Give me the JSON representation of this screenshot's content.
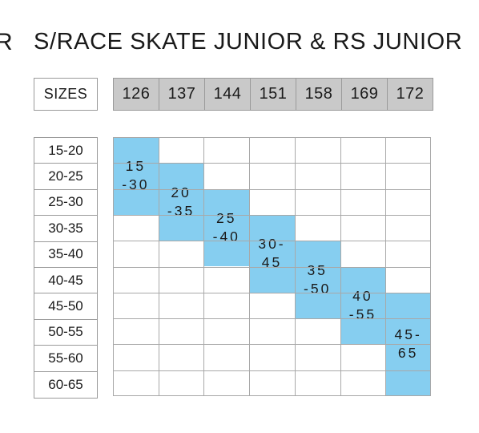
{
  "title": {
    "prefix": "R",
    "text": "S/RACE SKATE JUNIOR & RS JUNIOR"
  },
  "header": {
    "sizes_label": "SIZES",
    "sizes": [
      "126",
      "137",
      "144",
      "151",
      "158",
      "169",
      "172"
    ]
  },
  "ranges": [
    "15-20",
    "20-25",
    "25-30",
    "30-35",
    "35-40",
    "40-45",
    "45-50",
    "50-55",
    "55-60",
    "60-65"
  ],
  "recommendations": [
    {
      "size": "126",
      "label": "15\n-30",
      "rows": [
        0,
        2
      ]
    },
    {
      "size": "137",
      "label": "20\n-35",
      "rows": [
        1,
        3
      ]
    },
    {
      "size": "144",
      "label": "25\n-40",
      "rows": [
        2,
        4
      ]
    },
    {
      "size": "151",
      "label": "30-\n45",
      "rows": [
        3,
        5
      ]
    },
    {
      "size": "158",
      "label": "35\n-50",
      "rows": [
        4,
        6
      ]
    },
    {
      "size": "169",
      "label": "40\n-55",
      "rows": [
        5,
        7
      ]
    },
    {
      "size": "172",
      "label": "45-\n65",
      "rows": [
        6,
        9
      ]
    }
  ],
  "colors": {
    "highlight": "#86cef0",
    "header_bg": "#c9c9c9",
    "grid_line": "#a8a8a8"
  }
}
